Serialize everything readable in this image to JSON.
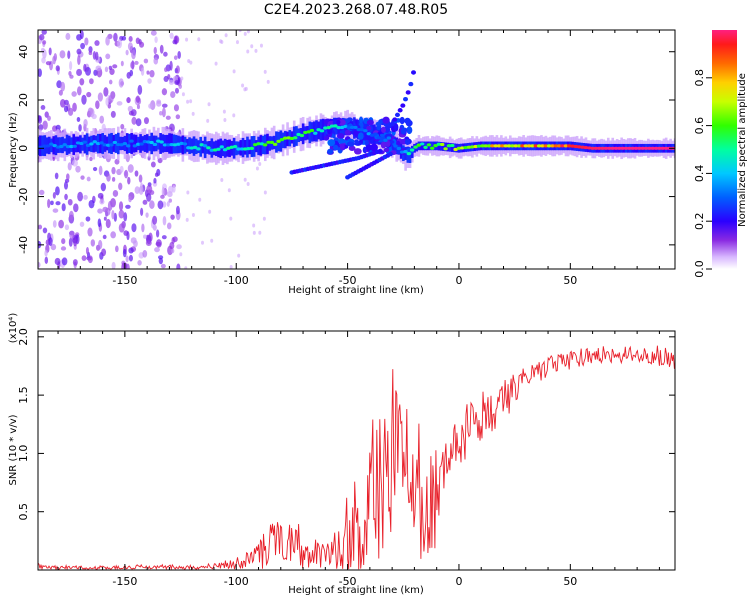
{
  "figure_title": "C2E4.2023.268.07.48.R05",
  "chart_data": [
    {
      "type": "heatmap",
      "title": "C2E4.2023.268.07.48.R05",
      "xlabel": "Height of straight line (km)",
      "ylabel": "Frequency (Hz)",
      "xlim": [
        -189,
        97
      ],
      "ylim": [
        -50,
        49
      ],
      "xticks": [
        -150,
        -100,
        -50,
        0,
        50
      ],
      "yticks": [
        -40,
        -20,
        0,
        20,
        40
      ],
      "xtick_labels": [
        "-150",
        "-100",
        "-50",
        "0",
        "50"
      ],
      "ytick_labels": [
        "-40",
        "-20",
        "0",
        "20",
        "40"
      ],
      "colorbar": {
        "label": "Normalized spectral amplitude",
        "range": [
          0,
          1
        ],
        "ticks": [
          0.0,
          0.2,
          0.4,
          0.6,
          0.8
        ],
        "tick_labels": [
          "0.0",
          "0.2",
          "0.4",
          "0.6",
          "0.8"
        ],
        "colormap": "rainbow"
      },
      "ridge": {
        "description": "dominant frequency track (Hz) vs height (km)",
        "x": [
          -189,
          -160,
          -130,
          -110,
          -100,
          -90,
          -80,
          -70,
          -60,
          -50,
          -45,
          -40,
          -35,
          -30,
          -25,
          -22,
          -20,
          -18,
          -15,
          -10,
          0,
          10,
          20,
          30,
          40,
          50,
          60,
          70,
          80,
          97
        ],
        "y": [
          1,
          2,
          2,
          0,
          0,
          1,
          3,
          6,
          8,
          9,
          8,
          6,
          5,
          3,
          -2,
          -3,
          0,
          1,
          1,
          1,
          0,
          1,
          1,
          1,
          1,
          1,
          0,
          0,
          0,
          0
        ],
        "amplitude": [
          0.35,
          0.4,
          0.4,
          0.5,
          0.5,
          0.6,
          0.7,
          0.6,
          0.55,
          0.4,
          0.4,
          0.35,
          0.35,
          0.3,
          0.45,
          0.5,
          0.55,
          0.6,
          0.6,
          0.65,
          0.7,
          0.75,
          0.85,
          0.9,
          0.9,
          0.95,
          0.98,
          1.0,
          1.0,
          1.0
        ]
      },
      "branches": [
        {
          "x": [
            -75,
            -60,
            -45,
            -35
          ],
          "y": [
            -10,
            -7,
            -4,
            -1
          ]
        },
        {
          "x": [
            -50,
            -40,
            -30
          ],
          "y": [
            -12,
            -7,
            -2
          ]
        },
        {
          "x": [
            -30,
            -25,
            -22,
            -20
          ],
          "y": [
            10,
            18,
            25,
            33
          ]
        }
      ]
    },
    {
      "type": "line",
      "xlabel": "Height of straight line (km)",
      "ylabel": "SNR (10 * v/v)",
      "y_multiplier_label": "(x10⁴)",
      "xlim": [
        -189,
        97
      ],
      "ylim": [
        0,
        2.05
      ],
      "xticks": [
        -150,
        -100,
        -50,
        0,
        50
      ],
      "yticks": [
        0.5,
        1.0,
        1.5,
        2.0
      ],
      "xtick_labels": [
        "-150",
        "-100",
        "-50",
        "0",
        "50"
      ],
      "ytick_labels": [
        "0.5",
        "1.0",
        "1.5",
        "2.0"
      ],
      "color": "#e8202a",
      "series": [
        {
          "name": "SNR",
          "x": [
            -189,
            -180,
            -160,
            -140,
            -120,
            -110,
            -100,
            -95,
            -90,
            -85,
            -80,
            -75,
            -70,
            -65,
            -60,
            -55,
            -50,
            -45,
            -40,
            -35,
            -30,
            -25,
            -20,
            -15,
            -12,
            -10,
            -5,
            0,
            5,
            10,
            15,
            20,
            25,
            30,
            35,
            40,
            50,
            60,
            70,
            80,
            90,
            97
          ],
          "y": [
            0.03,
            0.02,
            0.02,
            0.03,
            0.02,
            0.03,
            0.06,
            0.1,
            0.15,
            0.2,
            0.25,
            0.22,
            0.2,
            0.18,
            0.15,
            0.2,
            0.3,
            0.4,
            0.6,
            0.8,
            1.0,
            0.9,
            0.8,
            0.5,
            0.4,
            0.8,
            1.0,
            1.1,
            1.2,
            1.3,
            1.35,
            1.45,
            1.55,
            1.65,
            1.7,
            1.75,
            1.8,
            1.85,
            1.85,
            1.85,
            1.85,
            1.8
          ],
          "spread": [
            0.03,
            0.02,
            0.02,
            0.02,
            0.02,
            0.03,
            0.06,
            0.1,
            0.15,
            0.2,
            0.25,
            0.2,
            0.2,
            0.2,
            0.15,
            0.2,
            0.35,
            0.5,
            0.7,
            0.8,
            0.8,
            0.7,
            0.6,
            0.6,
            0.6,
            0.4,
            0.3,
            0.25,
            0.25,
            0.25,
            0.2,
            0.2,
            0.15,
            0.12,
            0.1,
            0.1,
            0.08,
            0.08,
            0.08,
            0.08,
            0.1,
            0.12
          ]
        }
      ]
    }
  ]
}
